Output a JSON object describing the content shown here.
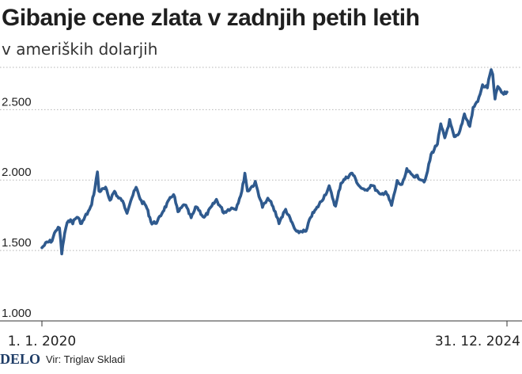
{
  "header": {
    "title": "Gibanje cene zlata v zadnjih petih letih",
    "subtitle": "v ameriških dolarjih"
  },
  "footer": {
    "brand": "DELO",
    "source": "Vir: Triglav Skladi"
  },
  "colors": {
    "line": "#2f5a8e",
    "grid": "#b5b5b5",
    "axis": "#333333"
  },
  "chart_data": {
    "type": "line",
    "title": "Gibanje cene zlata v zadnjih petih letih",
    "subtitle": "v ameriških dolarjih",
    "xlabel": "",
    "ylabel": "",
    "x_range": [
      "2020-01-01",
      "2024-12-31"
    ],
    "ylim": [
      1000,
      2800
    ],
    "y_ticks": [
      1000,
      1500,
      2000,
      2500
    ],
    "y_tick_labels": [
      "1.000",
      "1.500",
      "2.000",
      "2.500"
    ],
    "x_tick_labels": [
      "1. 1. 2020",
      "31. 12. 2024"
    ],
    "grid": true,
    "series": [
      {
        "values": [
          [
            "2020-01-01",
            1520
          ],
          [
            "2020-01-20",
            1555
          ],
          [
            "2020-02-10",
            1570
          ],
          [
            "2020-02-24",
            1645
          ],
          [
            "2020-03-10",
            1660
          ],
          [
            "2020-03-19",
            1480
          ],
          [
            "2020-03-30",
            1620
          ],
          [
            "2020-04-14",
            1720
          ],
          [
            "2020-05-01",
            1700
          ],
          [
            "2020-05-18",
            1740
          ],
          [
            "2020-06-05",
            1690
          ],
          [
            "2020-06-22",
            1750
          ],
          [
            "2020-07-10",
            1800
          ],
          [
            "2020-07-27",
            1940
          ],
          [
            "2020-08-06",
            2060
          ],
          [
            "2020-08-12",
            1920
          ],
          [
            "2020-08-24",
            1930
          ],
          [
            "2020-09-07",
            1940
          ],
          [
            "2020-09-24",
            1860
          ],
          [
            "2020-10-12",
            1920
          ],
          [
            "2020-10-28",
            1870
          ],
          [
            "2020-11-09",
            1860
          ],
          [
            "2020-11-30",
            1775
          ],
          [
            "2020-12-15",
            1860
          ],
          [
            "2021-01-05",
            1945
          ],
          [
            "2021-01-25",
            1850
          ],
          [
            "2021-02-12",
            1820
          ],
          [
            "2021-03-08",
            1690
          ],
          [
            "2021-03-30",
            1705
          ],
          [
            "2021-04-20",
            1780
          ],
          [
            "2021-05-10",
            1840
          ],
          [
            "2021-06-01",
            1905
          ],
          [
            "2021-06-18",
            1770
          ],
          [
            "2021-07-15",
            1830
          ],
          [
            "2021-08-09",
            1730
          ],
          [
            "2021-08-30",
            1815
          ],
          [
            "2021-09-29",
            1730
          ],
          [
            "2021-10-25",
            1800
          ],
          [
            "2021-11-16",
            1860
          ],
          [
            "2021-12-15",
            1770
          ],
          [
            "2022-01-10",
            1800
          ],
          [
            "2022-02-01",
            1800
          ],
          [
            "2022-02-24",
            1920
          ],
          [
            "2022-03-08",
            2050
          ],
          [
            "2022-03-18",
            1920
          ],
          [
            "2022-04-18",
            1980
          ],
          [
            "2022-05-16",
            1810
          ],
          [
            "2022-06-10",
            1870
          ],
          [
            "2022-07-05",
            1770
          ],
          [
            "2022-07-20",
            1700
          ],
          [
            "2022-08-15",
            1790
          ],
          [
            "2022-09-27",
            1625
          ],
          [
            "2022-10-20",
            1640
          ],
          [
            "2022-11-03",
            1630
          ],
          [
            "2022-11-21",
            1740
          ],
          [
            "2022-12-12",
            1790
          ],
          [
            "2023-01-10",
            1875
          ],
          [
            "2023-02-02",
            1950
          ],
          [
            "2023-02-27",
            1810
          ],
          [
            "2023-03-20",
            1980
          ],
          [
            "2023-04-13",
            2020
          ],
          [
            "2023-05-03",
            2050
          ],
          [
            "2023-05-30",
            1960
          ],
          [
            "2023-06-22",
            1920
          ],
          [
            "2023-07-20",
            1970
          ],
          [
            "2023-08-21",
            1890
          ],
          [
            "2023-09-12",
            1920
          ],
          [
            "2023-10-05",
            1820
          ],
          [
            "2023-10-27",
            1990
          ],
          [
            "2023-11-15",
            1960
          ],
          [
            "2023-12-04",
            2070
          ],
          [
            "2023-12-20",
            2040
          ],
          [
            "2024-01-18",
            2020
          ],
          [
            "2024-02-14",
            1990
          ],
          [
            "2024-03-08",
            2180
          ],
          [
            "2024-04-02",
            2260
          ],
          [
            "2024-04-15",
            2390
          ],
          [
            "2024-05-01",
            2300
          ],
          [
            "2024-05-20",
            2420
          ],
          [
            "2024-06-07",
            2300
          ],
          [
            "2024-06-25",
            2320
          ],
          [
            "2024-07-17",
            2470
          ],
          [
            "2024-08-07",
            2380
          ],
          [
            "2024-08-20",
            2510
          ],
          [
            "2024-09-12",
            2580
          ],
          [
            "2024-09-26",
            2670
          ],
          [
            "2024-10-15",
            2660
          ],
          [
            "2024-10-30",
            2790
          ],
          [
            "2024-11-05",
            2740
          ],
          [
            "2024-11-14",
            2570
          ],
          [
            "2024-11-25",
            2670
          ],
          [
            "2024-12-05",
            2630
          ],
          [
            "2024-12-18",
            2610
          ],
          [
            "2024-12-31",
            2625
          ]
        ]
      }
    ]
  }
}
